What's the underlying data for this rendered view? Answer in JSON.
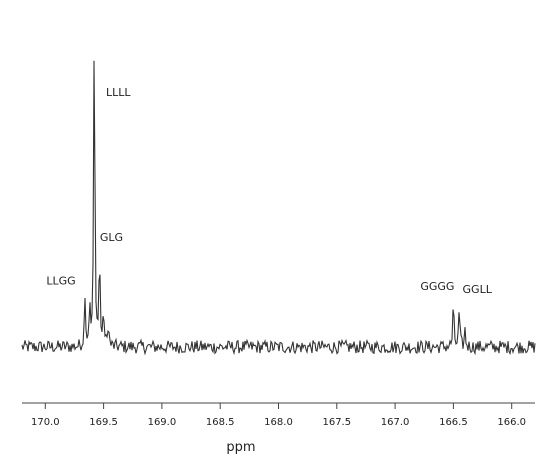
{
  "chart_data": {
    "type": "line",
    "title": "",
    "xlabel": "ppm",
    "ylabel": "",
    "x_axis_reversed": true,
    "xlim": [
      170.2,
      165.8
    ],
    "ylim": [
      0,
      1
    ],
    "grid": false,
    "legend": "none",
    "line_color": "#333333",
    "x_ticks": [
      {
        "value": 170.0,
        "label": "170.0"
      },
      {
        "value": 169.5,
        "label": "169.5"
      },
      {
        "value": 169.0,
        "label": "169.0"
      },
      {
        "value": 168.5,
        "label": "168.5"
      },
      {
        "value": 168.0,
        "label": "168.0"
      },
      {
        "value": 167.5,
        "label": "167.5"
      },
      {
        "value": 167.0,
        "label": "167.0"
      },
      {
        "value": 166.5,
        "label": "166.5"
      },
      {
        "value": 166.0,
        "label": "166.0"
      }
    ],
    "baseline": 0.0,
    "noise_amplitude": 0.02,
    "series": [
      {
        "peaks": [
          {
            "ppm": 169.66,
            "intensity": 0.16,
            "label": "LLGG"
          },
          {
            "ppm": 169.62,
            "intensity": 0.12,
            "label": ""
          },
          {
            "ppm": 169.58,
            "intensity": 1.0,
            "label": "LLLL"
          },
          {
            "ppm": 169.535,
            "intensity": 0.28,
            "label": "GLG"
          },
          {
            "ppm": 169.5,
            "intensity": 0.1,
            "label": ""
          },
          {
            "ppm": 169.46,
            "intensity": 0.07,
            "label": ""
          },
          {
            "ppm": 166.5,
            "intensity": 0.13,
            "label": "GGGG"
          },
          {
            "ppm": 166.45,
            "intensity": 0.11,
            "label": "GGLL"
          },
          {
            "ppm": 166.4,
            "intensity": 0.05,
            "label": ""
          }
        ]
      }
    ]
  }
}
